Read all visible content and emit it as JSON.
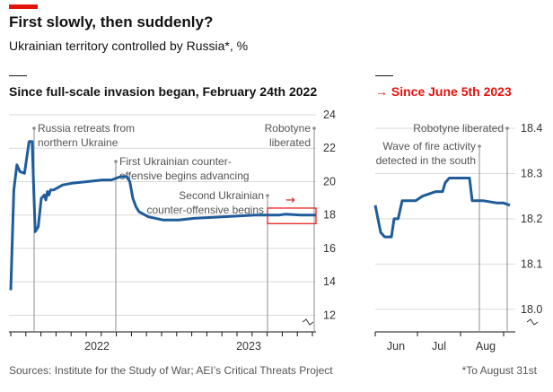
{
  "title": "First slowly, then suddenly?",
  "subtitle": "Ukrainian territory controlled by Russia*, %",
  "source": "Sources: Institute for the Study of War; AEI’s Critical Threats Project",
  "footnote": "*To August 31st",
  "colors": {
    "accent": "#e3120b",
    "line": "#1f5c99",
    "grid": "#d9d9d9",
    "annotation": "#8c8c8c"
  },
  "chart_data": [
    {
      "type": "line",
      "title": "Since full-scale invasion began, February 24th 2022",
      "xlabel": "",
      "ylabel": "",
      "ylim": [
        11,
        24
      ],
      "yticks": [
        "24",
        "22",
        "20",
        "18",
        "16",
        "14",
        "12"
      ],
      "xtick_labels": [
        "2022",
        "2023"
      ],
      "x": [
        0,
        0.01,
        0.02,
        0.025,
        0.03,
        0.045,
        0.06,
        0.07,
        0.08,
        0.09,
        0.1,
        0.11,
        0.115,
        0.12,
        0.125,
        0.13,
        0.14,
        0.15,
        0.17,
        0.2,
        0.25,
        0.3,
        0.33,
        0.36,
        0.38,
        0.39,
        0.4,
        0.41,
        0.42,
        0.45,
        0.5,
        0.55,
        0.6,
        0.7,
        0.8,
        0.85,
        0.88,
        0.9,
        0.95,
        1.0
      ],
      "series": [
        {
          "name": "Russian-controlled territory",
          "values": [
            13.5,
            19.5,
            21.0,
            20.8,
            20.6,
            20.5,
            22.4,
            22.4,
            17.0,
            17.3,
            19.0,
            19.2,
            18.9,
            19.4,
            19.2,
            19.5,
            19.5,
            19.6,
            19.8,
            19.9,
            20.0,
            20.1,
            20.1,
            20.3,
            20.3,
            20.0,
            19.0,
            18.5,
            18.2,
            17.9,
            17.7,
            17.7,
            17.8,
            17.9,
            18.0,
            18.0,
            18.0,
            18.05,
            18.0,
            18.0
          ]
        }
      ],
      "annotations": [
        {
          "label": "Russia retreats from northern Ukraine",
          "x": 0.08
        },
        {
          "label": "First Ukrainian counter-offensive begins advancing",
          "x": 0.38
        },
        {
          "label": "Second Ukrainian counter-offensive begins",
          "x": 0.85
        },
        {
          "label": "Robotyne liberated",
          "x": 1.0
        }
      ],
      "title_lines": {
        "ann0": [
          "Russia retreats from",
          "northern Ukraine"
        ],
        "ann1": [
          "First Ukrainian counter-",
          "offensive begins advancing"
        ],
        "ann2": [
          "Second Ukrainian",
          "counter-offensive begins"
        ],
        "ann3": [
          "Robotyne",
          "liberated"
        ]
      },
      "highlight_box": {
        "y_range": [
          17.7,
          18.2
        ],
        "x_range": [
          0.85,
          1.0
        ]
      },
      "arrow": "→"
    },
    {
      "type": "line",
      "title": "→ Since June 5th 2023",
      "xlabel": "",
      "ylabel": "",
      "ylim": [
        17.95,
        18.4
      ],
      "yticks": [
        "18.4",
        "18.3",
        "18.2",
        "18.1",
        "18.0"
      ],
      "xtick_labels": [
        "Jun",
        "Jul",
        "Aug"
      ],
      "x": [
        0,
        0.02,
        0.04,
        0.07,
        0.12,
        0.14,
        0.17,
        0.2,
        0.3,
        0.35,
        0.45,
        0.5,
        0.52,
        0.55,
        0.65,
        0.7,
        0.72,
        0.8,
        0.9,
        0.95,
        1.0
      ],
      "series": [
        {
          "name": "Russian-controlled territory",
          "values": [
            18.23,
            18.2,
            18.17,
            18.16,
            18.16,
            18.2,
            18.2,
            18.24,
            18.24,
            18.25,
            18.26,
            18.26,
            18.28,
            18.29,
            18.29,
            18.29,
            18.24,
            18.24,
            18.235,
            18.235,
            18.23
          ]
        }
      ],
      "annotations": [
        {
          "label": "Wave of fire activity detected in the south",
          "x": 0.72
        },
        {
          "label": "Robotyne liberated",
          "x": 0.97
        }
      ],
      "title_lines": {
        "ann0": [
          "Wave of fire activity",
          "detected in the south"
        ],
        "ann1": [
          "Robotyne liberated"
        ]
      }
    }
  ]
}
